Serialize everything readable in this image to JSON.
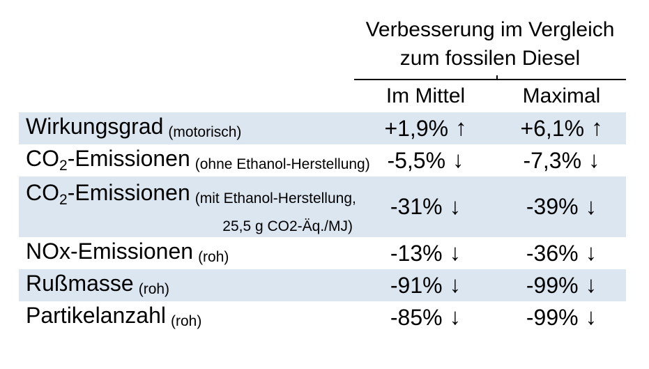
{
  "colors": {
    "row_shade": "#dce6f1",
    "text": "#000000",
    "divider": "#000000"
  },
  "header": {
    "title_line1": "Verbesserung im Vergleich",
    "title_line2": "zum fossilen Diesel",
    "col_mittel": "Im Mittel",
    "col_maximal": "Maximal"
  },
  "table": {
    "rows": [
      {
        "label_pre": "Wirkungsgrad",
        "label_sub": "",
        "label_post": "",
        "note": "(motorisch)",
        "note2": "",
        "mittel": "+1,9%",
        "mittel_arrow": "↑",
        "maximal": "+6,1%",
        "maximal_arrow": "↑"
      },
      {
        "label_pre": "CO",
        "label_sub": "2",
        "label_post": "-Emissionen",
        "note": "(ohne Ethanol-Herstellung)",
        "note2": "",
        "mittel": "-5,5%",
        "mittel_arrow": "↓",
        "maximal": "-7,3%",
        "maximal_arrow": "↓"
      },
      {
        "label_pre": "CO",
        "label_sub": "2",
        "label_post": "-Emissionen",
        "note": "(mit Ethanol-Herstellung,",
        "note2": "25,5 g CO2-Äq./MJ)",
        "mittel": "-31%",
        "mittel_arrow": "↓",
        "maximal": "-39%",
        "maximal_arrow": "↓"
      },
      {
        "label_pre": "NOx-Emissionen",
        "label_sub": "",
        "label_post": "",
        "note": "(roh)",
        "note2": "",
        "mittel": "-13%",
        "mittel_arrow": "↓",
        "maximal": "-36%",
        "maximal_arrow": "↓"
      },
      {
        "label_pre": "Rußmasse",
        "label_sub": "",
        "label_post": "",
        "note": "(roh)",
        "note2": "",
        "mittel": "-91%",
        "mittel_arrow": "↓",
        "maximal": "-99%",
        "maximal_arrow": "↓"
      },
      {
        "label_pre": "Partikelanzahl",
        "label_sub": "",
        "label_post": "",
        "note": "(roh)",
        "note2": "",
        "mittel": "-85%",
        "mittel_arrow": "↓",
        "maximal": "-99%",
        "maximal_arrow": "↓"
      }
    ]
  }
}
